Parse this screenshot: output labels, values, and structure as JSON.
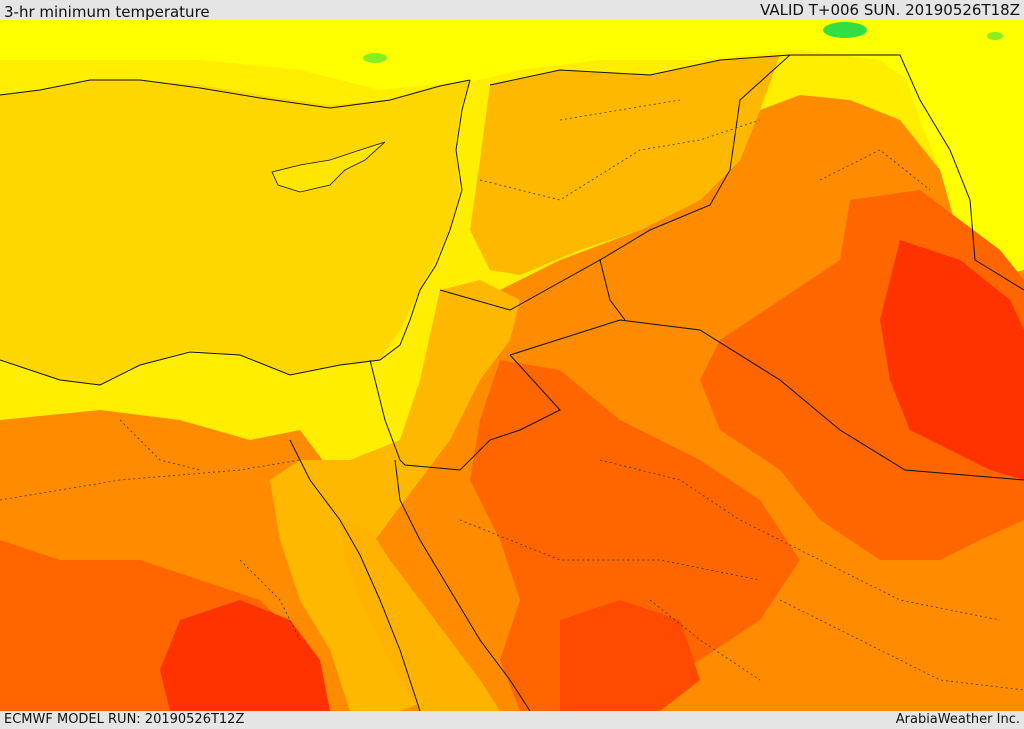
{
  "header": {
    "title": "3-hr minimum temperature",
    "valid": "VALID T+006 SUN. 20190526T18Z"
  },
  "footer": {
    "model_run": "ECMWF MODEL RUN: 20190526T12Z",
    "credit": "ArabiaWeather Inc."
  },
  "palette": {
    "sea": "#ffd700",
    "cool_land": "#ffff00",
    "mild": "#ffb800",
    "warm": "#ff8c00",
    "hot": "#ff6600",
    "very_hot": "#ff3300",
    "cold_spot": "#33dd44"
  }
}
